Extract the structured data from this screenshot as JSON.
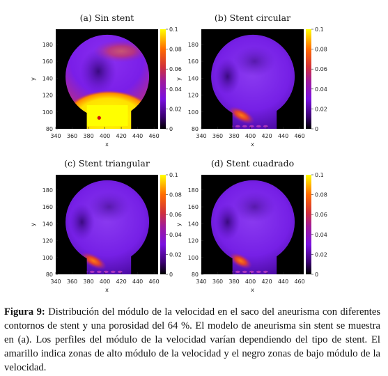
{
  "figure": {
    "panels": [
      {
        "title": "(a) Sin stent",
        "variant": "none"
      },
      {
        "title": "(b) Stent circular",
        "variant": "circular"
      },
      {
        "title": "(c) Stent triangular",
        "variant": "triangular"
      },
      {
        "title": "(d) Stent cuadrado",
        "variant": "square"
      }
    ],
    "xlabel": "x",
    "ylabel": "y",
    "xticks": [
      "340",
      "360",
      "380",
      "400",
      "420",
      "440",
      "460"
    ],
    "yticks": [
      "80",
      "100",
      "120",
      "140",
      "160",
      "180"
    ],
    "cbticks": [
      "0",
      "0.02",
      "0.04",
      "0.06",
      "0.08",
      "0.1"
    ]
  },
  "chart_data": [
    {
      "type": "heatmap",
      "title": "(a) Sin stent",
      "xlabel": "x",
      "ylabel": "y",
      "xlim": [
        340,
        465
      ],
      "ylim": [
        80,
        198
      ],
      "colorbar": [
        0,
        0.1
      ],
      "colormap": [
        "#000000",
        "#6b00b8",
        "#8a2be2",
        "#d0303a",
        "#ff6a00",
        "#ffff00"
      ]
    },
    {
      "type": "heatmap",
      "title": "(b) Stent circular",
      "xlabel": "x",
      "ylabel": "y",
      "xlim": [
        340,
        465
      ],
      "ylim": [
        80,
        198
      ],
      "colorbar": [
        0,
        0.1
      ]
    },
    {
      "type": "heatmap",
      "title": "(c) Stent triangular",
      "xlabel": "x",
      "ylabel": "y",
      "xlim": [
        340,
        465
      ],
      "ylim": [
        80,
        198
      ],
      "colorbar": [
        0,
        0.1
      ]
    },
    {
      "type": "heatmap",
      "title": "(d) Stent cuadrado",
      "xlabel": "x",
      "ylabel": "y",
      "xlim": [
        340,
        465
      ],
      "ylim": [
        80,
        198
      ],
      "colorbar": [
        0,
        0.1
      ]
    }
  ],
  "caption": {
    "label": "Figura 9:",
    "text": " Distribución del módulo de la velocidad en el saco del aneurisma con diferentes contornos de stent y una porosidad del 64 %. El modelo de aneurisma sin stent se muestra en (a). Los perfiles del módulo de la velocidad varían dependiendo del tipo de stent. El amarillo indica zonas de alto módulo de la velocidad y el negro zonas de bajo módulo de la velocidad."
  }
}
